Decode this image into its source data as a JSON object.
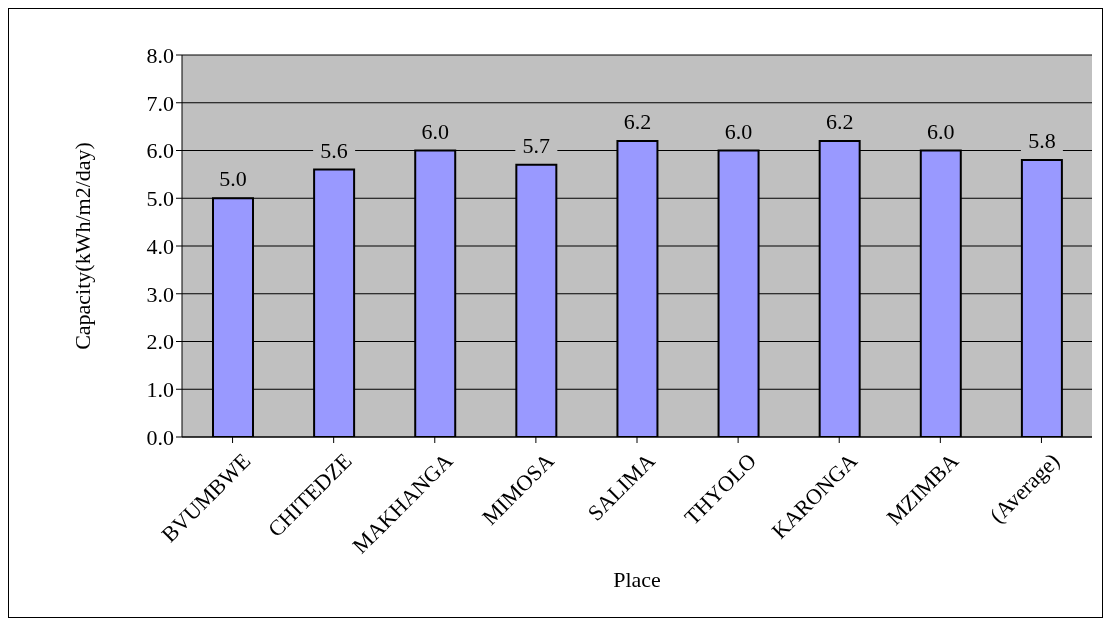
{
  "chart_data": {
    "type": "bar",
    "xlabel": "Place",
    "ylabel": "Capacity(kWh/m2/day)",
    "categories": [
      "BVUMBWE",
      "CHITEDZE",
      "MAKHANGA",
      "MIMOSA",
      "SALIMA",
      "THYOLO",
      "KARONGA",
      "MZIMBA",
      "(Average)"
    ],
    "values": [
      5.0,
      5.6,
      6.0,
      5.7,
      6.2,
      6.0,
      6.2,
      6.0,
      5.8
    ],
    "value_labels": [
      "5.0",
      "5.6",
      "6.0",
      "5.7",
      "6.2",
      "6.0",
      "6.2",
      "6.0",
      "5.8"
    ],
    "color": "#9999ff",
    "ylim": [
      0,
      8
    ],
    "yticks": [
      {
        "value": 0,
        "label": "0.0"
      },
      {
        "value": 1,
        "label": "1.0"
      },
      {
        "value": 2,
        "label": "2.0"
      },
      {
        "value": 3,
        "label": "3.0"
      },
      {
        "value": 4,
        "label": "4.0"
      },
      {
        "value": 5,
        "label": "5.0"
      },
      {
        "value": 6,
        "label": "6.0"
      },
      {
        "value": 7,
        "label": "7.0"
      },
      {
        "value": 8,
        "label": "8.0"
      }
    ],
    "grid": "y",
    "legend": false
  }
}
